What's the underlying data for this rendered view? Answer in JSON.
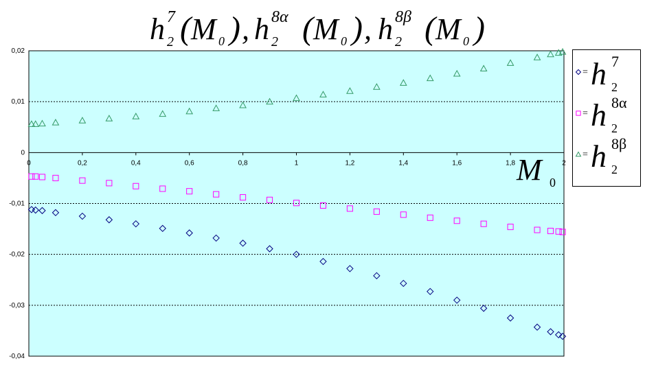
{
  "chart_data": {
    "type": "scatter",
    "title": "h₂⁷(M₀), h₂⁸ᵅ(M₀), h₂⁸ᵝ(M₀)",
    "xlabel": "M0",
    "ylabel": "",
    "xlim": [
      0,
      2
    ],
    "ylim": [
      -0.04,
      0.02
    ],
    "x_ticks": [
      "0",
      "0,2",
      "0,4",
      "0,6",
      "0,8",
      "1",
      "1,2",
      "1,4",
      "1,6",
      "1,8",
      "2"
    ],
    "y_ticks": [
      "-0,04",
      "-0,03",
      "-0,02",
      "-0,01",
      "0",
      "0,01",
      "0,02"
    ],
    "grid": "horizontal dashed",
    "legend_position": "right",
    "background_color": "#ccffff",
    "series": [
      {
        "name": "h2^7",
        "marker": "diamond",
        "color": "#000080",
        "x": [
          0.01,
          0.025,
          0.05,
          0.1,
          0.2,
          0.3,
          0.4,
          0.5,
          0.6,
          0.7,
          0.8,
          0.9,
          1.0,
          1.1,
          1.2,
          1.3,
          1.4,
          1.5,
          1.6,
          1.7,
          1.8,
          1.9,
          1.95,
          1.98,
          1.995
        ],
        "y": [
          -0.0112,
          -0.0113,
          -0.0114,
          -0.0118,
          -0.0125,
          -0.0132,
          -0.014,
          -0.0149,
          -0.0158,
          -0.0168,
          -0.0178,
          -0.0189,
          -0.02,
          -0.0214,
          -0.0228,
          -0.0242,
          -0.0257,
          -0.0273,
          -0.029,
          -0.0306,
          -0.0325,
          -0.0343,
          -0.0352,
          -0.0358,
          -0.0361
        ]
      },
      {
        "name": "h2^8alpha",
        "marker": "square",
        "color": "#ff00ff",
        "x": [
          0.01,
          0.025,
          0.05,
          0.1,
          0.2,
          0.3,
          0.4,
          0.5,
          0.6,
          0.7,
          0.8,
          0.9,
          1.0,
          1.1,
          1.2,
          1.3,
          1.4,
          1.5,
          1.6,
          1.7,
          1.8,
          1.9,
          1.95,
          1.98,
          1.995
        ],
        "y": [
          -0.0047,
          -0.0047,
          -0.0048,
          -0.005,
          -0.0055,
          -0.006,
          -0.0066,
          -0.0071,
          -0.0076,
          -0.0082,
          -0.0088,
          -0.0093,
          -0.0099,
          -0.0104,
          -0.011,
          -0.0116,
          -0.0122,
          -0.0128,
          -0.0134,
          -0.014,
          -0.0146,
          -0.0152,
          -0.0154,
          -0.0155,
          -0.0156
        ]
      },
      {
        "name": "h2^8beta",
        "marker": "triangle",
        "color": "#339966",
        "x": [
          0.01,
          0.025,
          0.05,
          0.1,
          0.2,
          0.3,
          0.4,
          0.5,
          0.6,
          0.7,
          0.8,
          0.9,
          1.0,
          1.1,
          1.2,
          1.3,
          1.4,
          1.5,
          1.6,
          1.7,
          1.8,
          1.9,
          1.95,
          1.98,
          1.995
        ],
        "y": [
          0.0056,
          0.0056,
          0.0057,
          0.0059,
          0.0063,
          0.0067,
          0.0071,
          0.0076,
          0.0081,
          0.0087,
          0.0093,
          0.01,
          0.0107,
          0.0114,
          0.0121,
          0.0129,
          0.0137,
          0.0146,
          0.0155,
          0.0165,
          0.0176,
          0.0187,
          0.0193,
          0.0196,
          0.0198
        ]
      }
    ]
  },
  "title_parts": {
    "h": "h",
    "sub": "2",
    "sup1": "7",
    "sup2": "8α",
    "sup3": "8β",
    "M": "M",
    "M_sub": "0",
    "lparen": "(",
    "rparen": ")",
    "comma": ","
  },
  "axis_label": {
    "M": "M",
    "sub": "0"
  },
  "legend": {
    "items": [
      {
        "eq": "=",
        "h": "h",
        "sub": "2",
        "sup": "7"
      },
      {
        "eq": "=",
        "h": "h",
        "sub": "2",
        "sup": "8α"
      },
      {
        "eq": "=",
        "h": "h",
        "sub": "2",
        "sup": "8β"
      }
    ]
  }
}
